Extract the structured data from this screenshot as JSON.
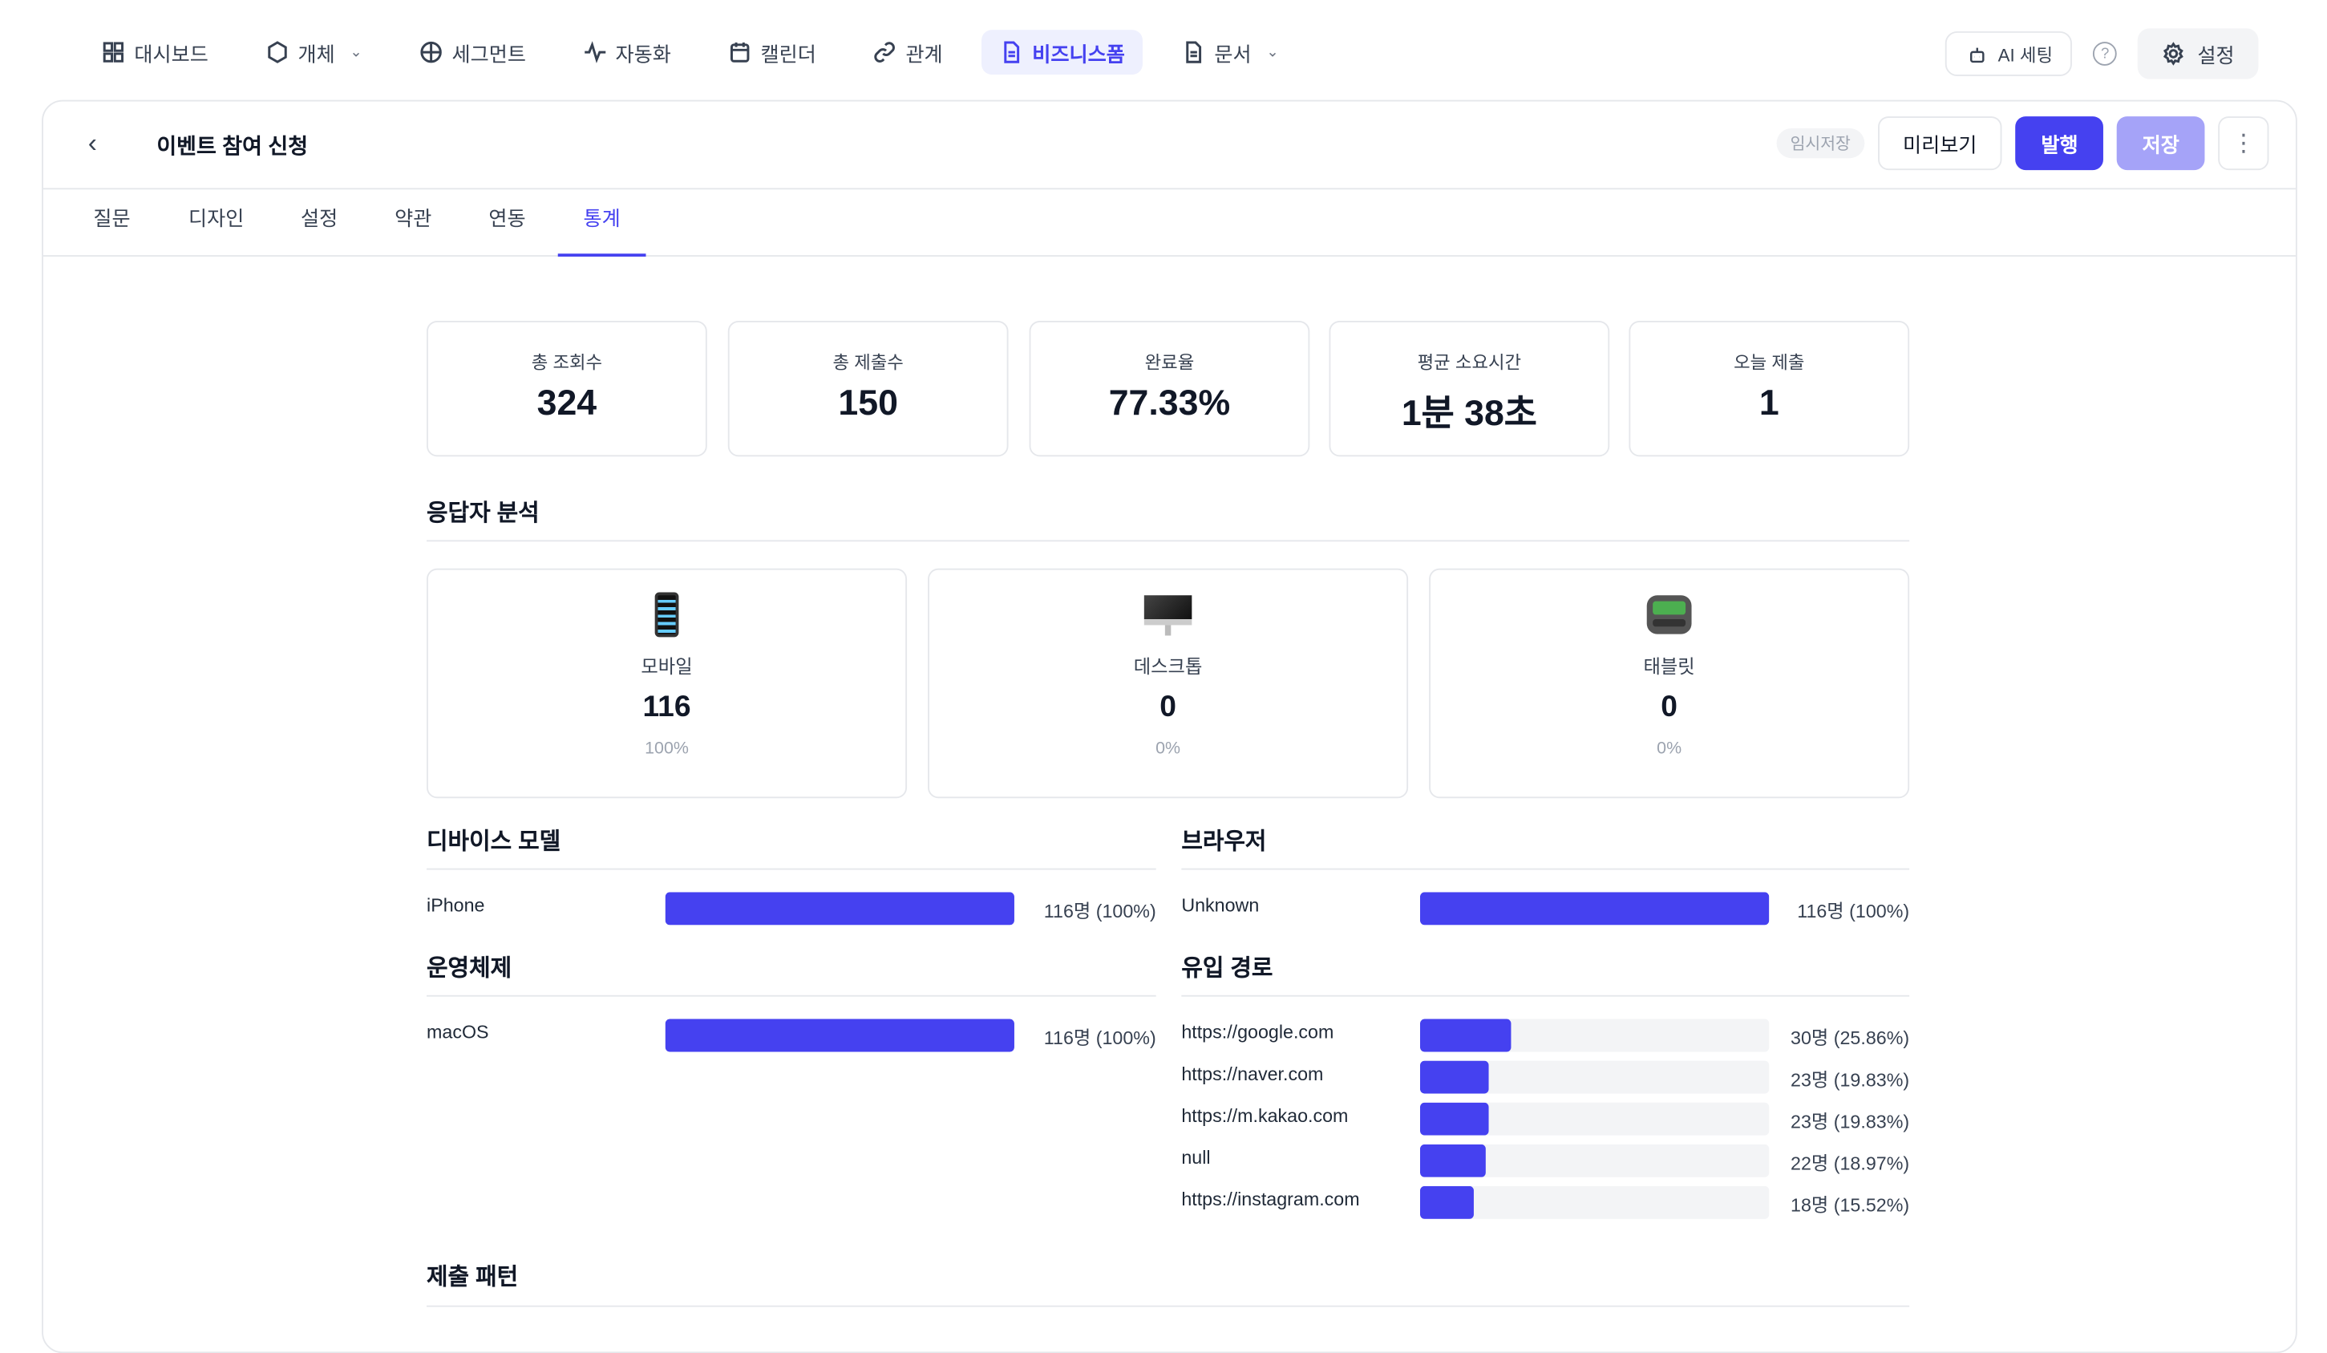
{
  "nav": {
    "items": [
      {
        "label": "대시보드",
        "icon": "grid-icon"
      },
      {
        "label": "개체",
        "icon": "hexagon-icon",
        "dropdown": true
      },
      {
        "label": "세그먼트",
        "icon": "globe-icon"
      },
      {
        "label": "자동화",
        "icon": "activity-icon"
      },
      {
        "label": "캘린더",
        "icon": "calendar-icon"
      },
      {
        "label": "관계",
        "icon": "link-icon"
      },
      {
        "label": "비즈니스폼",
        "icon": "document-icon",
        "active": true
      },
      {
        "label": "문서",
        "icon": "document-icon",
        "dropdown": true
      }
    ],
    "ai_setting": "AI 세팅",
    "help": "?",
    "settings": "설정"
  },
  "header": {
    "title": "이벤트 참여 신청",
    "draft_badge": "임시저장",
    "preview": "미리보기",
    "publish": "발행",
    "save": "저장"
  },
  "tabs": [
    {
      "label": "질문"
    },
    {
      "label": "디자인"
    },
    {
      "label": "설정"
    },
    {
      "label": "약관"
    },
    {
      "label": "연동"
    },
    {
      "label": "통계",
      "active": true
    }
  ],
  "stats": [
    {
      "label": "총 조회수",
      "value": "324"
    },
    {
      "label": "총 제출수",
      "value": "150"
    },
    {
      "label": "완료율",
      "value": "77.33%"
    },
    {
      "label": "평균 소요시간",
      "value": "1분 38초"
    },
    {
      "label": "오늘 제출",
      "value": "1"
    }
  ],
  "respondent": {
    "title": "응답자 분석",
    "devices": [
      {
        "label": "모바일",
        "value": "116",
        "percent": "100%",
        "icon": "mobile-phone-icon"
      },
      {
        "label": "데스크톱",
        "value": "0",
        "percent": "0%",
        "icon": "desktop-computer-icon"
      },
      {
        "label": "태블릿",
        "value": "0",
        "percent": "0%",
        "icon": "pager-icon"
      }
    ]
  },
  "device_model": {
    "title": "디바이스 모델",
    "rows": [
      {
        "label": "iPhone",
        "value": "116명 (100%)",
        "fraction": 1.0
      }
    ]
  },
  "browser": {
    "title": "브라우저",
    "rows": [
      {
        "label": "Unknown",
        "value": "116명 (100%)",
        "fraction": 1.0
      }
    ]
  },
  "os": {
    "title": "운영체제",
    "rows": [
      {
        "label": "macOS",
        "value": "116명 (100%)",
        "fraction": 1.0
      }
    ]
  },
  "referrer": {
    "title": "유입 경로",
    "rows": [
      {
        "label": "https://google.com",
        "value": "30명 (25.86%)",
        "fraction": 0.2586
      },
      {
        "label": "https://naver.com",
        "value": "23명 (19.83%)",
        "fraction": 0.1983
      },
      {
        "label": "https://m.kakao.com",
        "value": "23명 (19.83%)",
        "fraction": 0.1983
      },
      {
        "label": "null",
        "value": "22명 (18.97%)",
        "fraction": 0.1897
      },
      {
        "label": "https://instagram.com",
        "value": "18명 (15.52%)",
        "fraction": 0.1552
      }
    ]
  },
  "submission_pattern": {
    "title": "제출 패턴"
  },
  "colors": {
    "accent": "#4541f0",
    "accent_light": "#a5a3f8",
    "active_nav_bg": "#eef0fe"
  }
}
